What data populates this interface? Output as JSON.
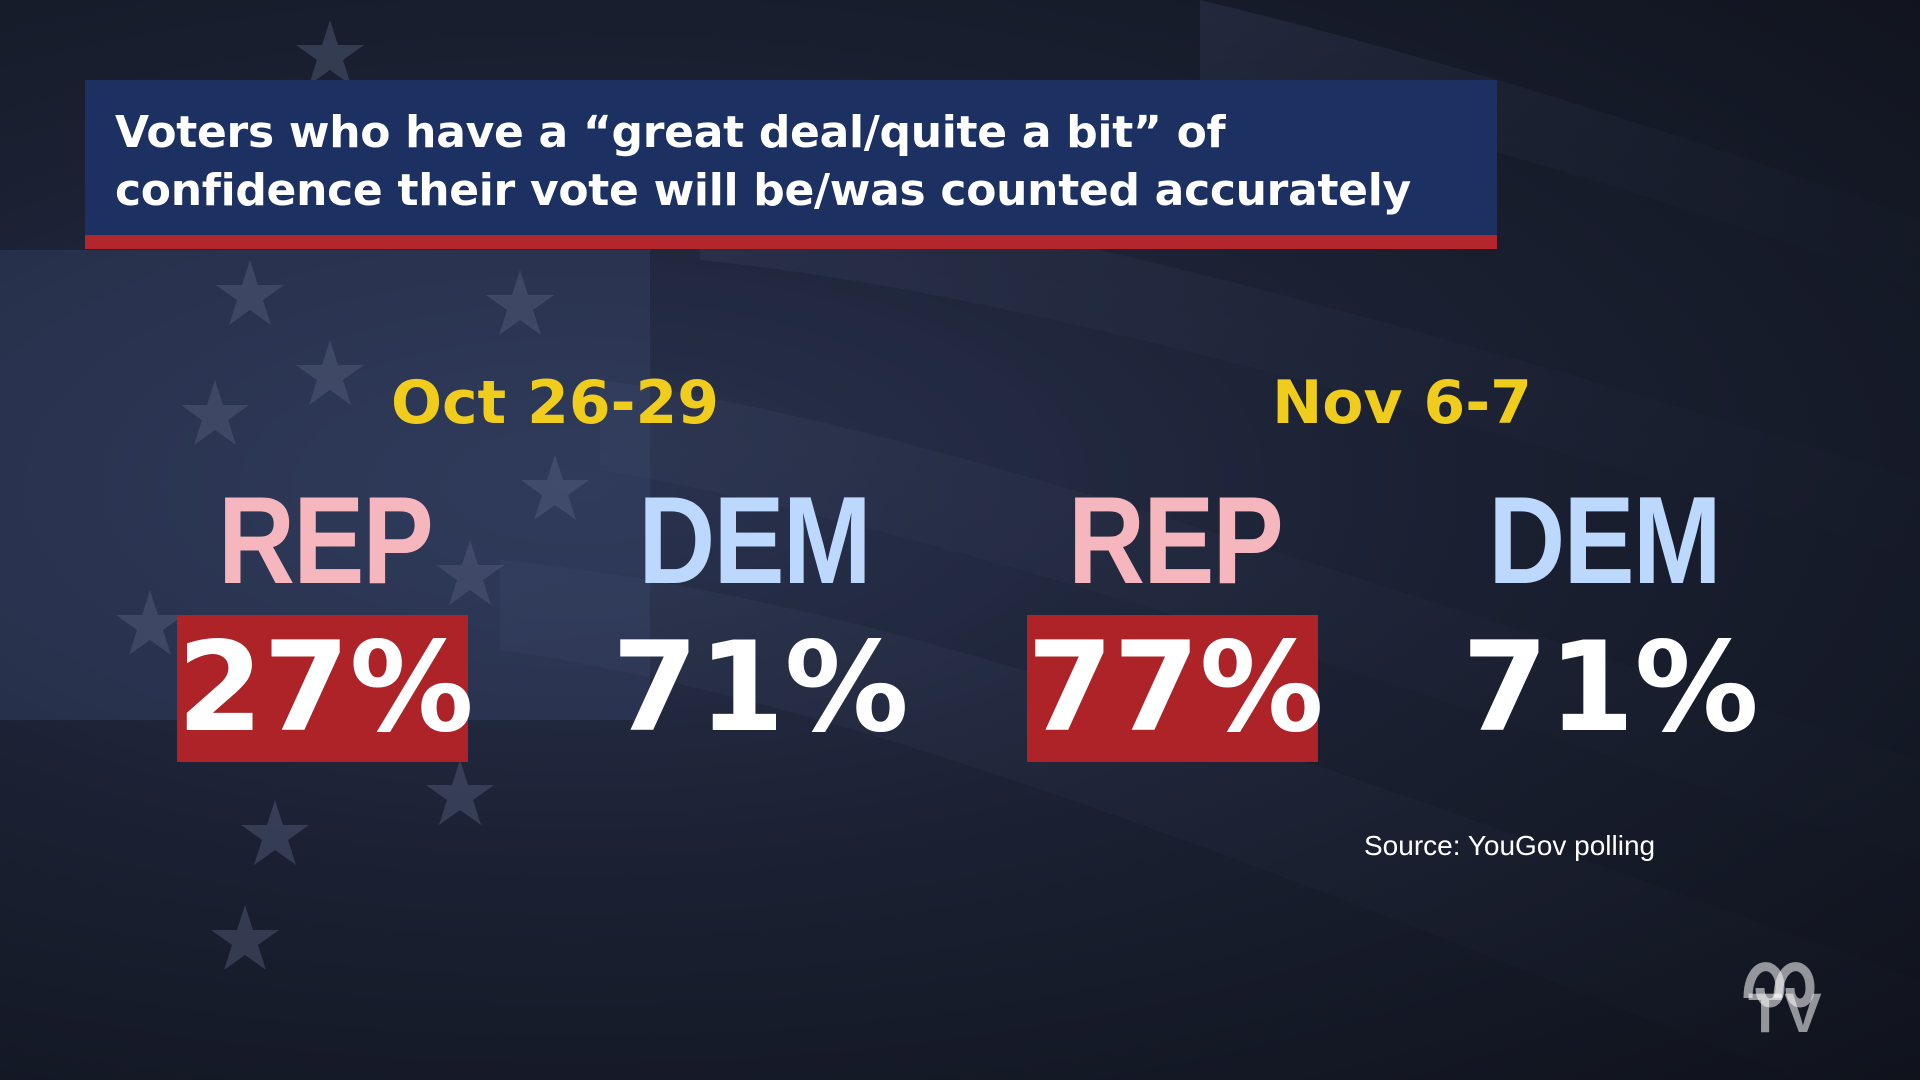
{
  "title": "Voters who have a “great deal/quite a bit” of confidence their vote will be/was counted accurately",
  "periods": [
    {
      "label": "Oct 26-29",
      "rep_label": "REP",
      "rep_value": "27%",
      "dem_label": "DEM",
      "dem_value": "71%"
    },
    {
      "label": "Nov 6-7",
      "rep_label": "REP",
      "rep_value": "77%",
      "dem_label": "DEM",
      "dem_value": "71%"
    }
  ],
  "source": "Source: YouGov polling",
  "logo": {
    "name": "abc-tv-logo",
    "text": "TV"
  },
  "colors": {
    "title_bg": "#1d3062",
    "title_rule": "#b3262c",
    "period_label": "#f0cd1c",
    "rep": "#f6b6bd",
    "dem": "#bcd8fd",
    "rep_highlight": "#ae2327"
  }
}
